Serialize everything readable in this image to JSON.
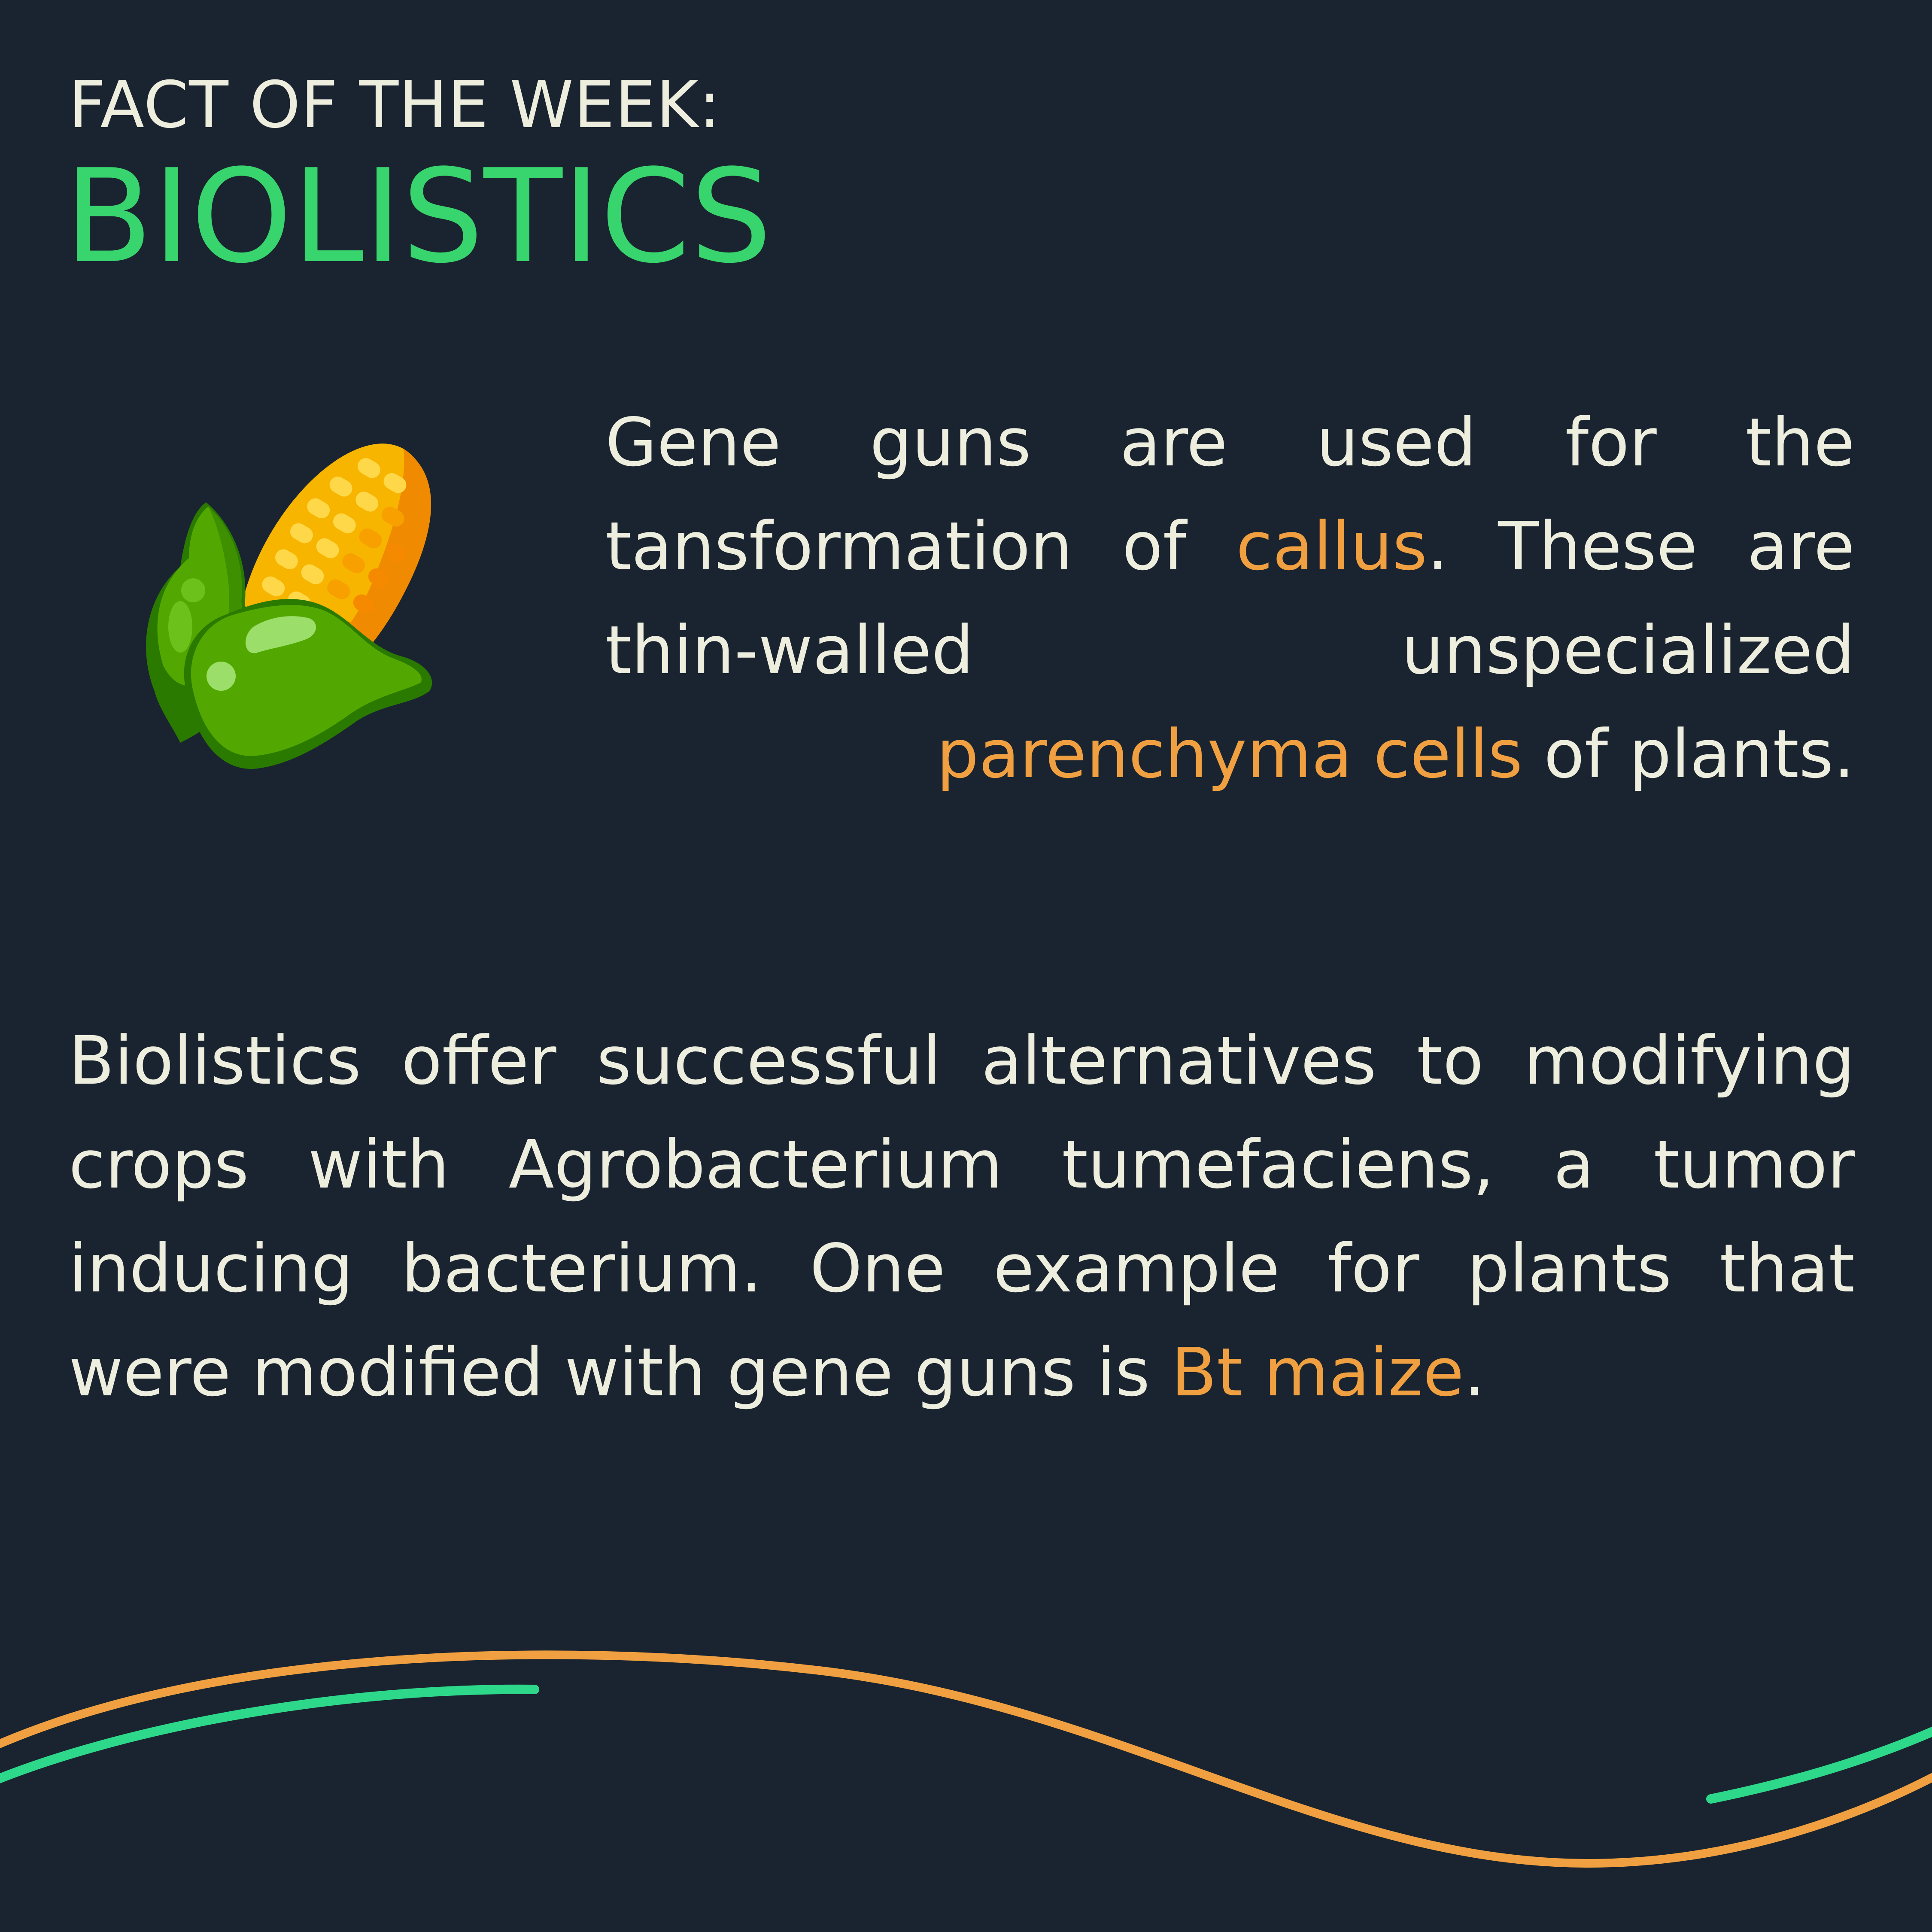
{
  "header": {
    "kicker": "FACT OF THE WEEK:",
    "title": "BIOLISTICS"
  },
  "illustration": {
    "icon": "corn-icon",
    "colors": {
      "kernel_yellow": "#f7b500",
      "kernel_orange": "#f08a00",
      "leaf_green": "#52a800",
      "leaf_dark": "#2a7a00"
    }
  },
  "paragraph1": {
    "part1": "Gene guns are used for the tansformation of ",
    "highlight1": "callus",
    "part2": ". These are thin-walled unspecialized ",
    "highlight2": "parenchyma cells",
    "part3": " of plants."
  },
  "paragraph2": {
    "part1": "Biolistics offer successful alternatives to modifying crops with Agrobacterium tumefaciens, a tumor inducing bacterium. One example for plants that were modified with gene guns is ",
    "highlight1": "Bt maize",
    "part2": "."
  },
  "colors": {
    "background": "#1a2430",
    "text": "#eeeedf",
    "title_green": "#38d46d",
    "highlight_orange": "#f0a040",
    "wave_orange": "#f0a040",
    "wave_green": "#2ed88a"
  }
}
